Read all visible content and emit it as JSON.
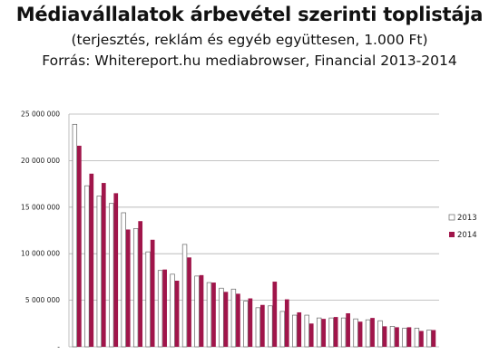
{
  "header": {
    "title": "Médiavállalatok árbevétel szerinti toplistája",
    "subtitle": "(terjesztés, reklám és egyéb együttesen, 1.000 Ft)",
    "source": "Forrás: Whitereport.hu mediabrowser, Financial 2013-2014"
  },
  "colors": {
    "s2013_fill": "#ffffff",
    "s2013_stroke": "#666666",
    "s2014": "#a0154a",
    "grid": "#b0b0b0"
  },
  "chart_data": {
    "type": "bar",
    "title": "Médiavállalatok árbevétel szerinti toplistája",
    "ylim": [
      0,
      25000000
    ],
    "yticks": [
      0,
      5000000,
      10000000,
      15000000,
      20000000,
      25000000
    ],
    "ytick_labels": [
      "-",
      "5 000 000",
      "10 000 000",
      "15 000 000",
      "20 000 000",
      "25 000 000"
    ],
    "grid": true,
    "legend": "right",
    "series": [
      {
        "name": "2013",
        "values": [
          23900000,
          17300000,
          16200000,
          15400000,
          14400000,
          12700000,
          10200000,
          8200000,
          7800000,
          11000000,
          7600000,
          6900000,
          6300000,
          6200000,
          4900000,
          4200000,
          4400000,
          3800000,
          3400000,
          3400000,
          3100000,
          3100000,
          3100000,
          3000000,
          2900000,
          2800000,
          2200000,
          2000000,
          2000000,
          1800000
        ]
      },
      {
        "name": "2014",
        "values": [
          21600000,
          18600000,
          17600000,
          16500000,
          12600000,
          13500000,
          11500000,
          8300000,
          7100000,
          9600000,
          7700000,
          6900000,
          5900000,
          5700000,
          5200000,
          4500000,
          7000000,
          5100000,
          3700000,
          2500000,
          3000000,
          3200000,
          3600000,
          2700000,
          3100000,
          2200000,
          2100000,
          2100000,
          1700000,
          1800000
        ]
      }
    ]
  }
}
